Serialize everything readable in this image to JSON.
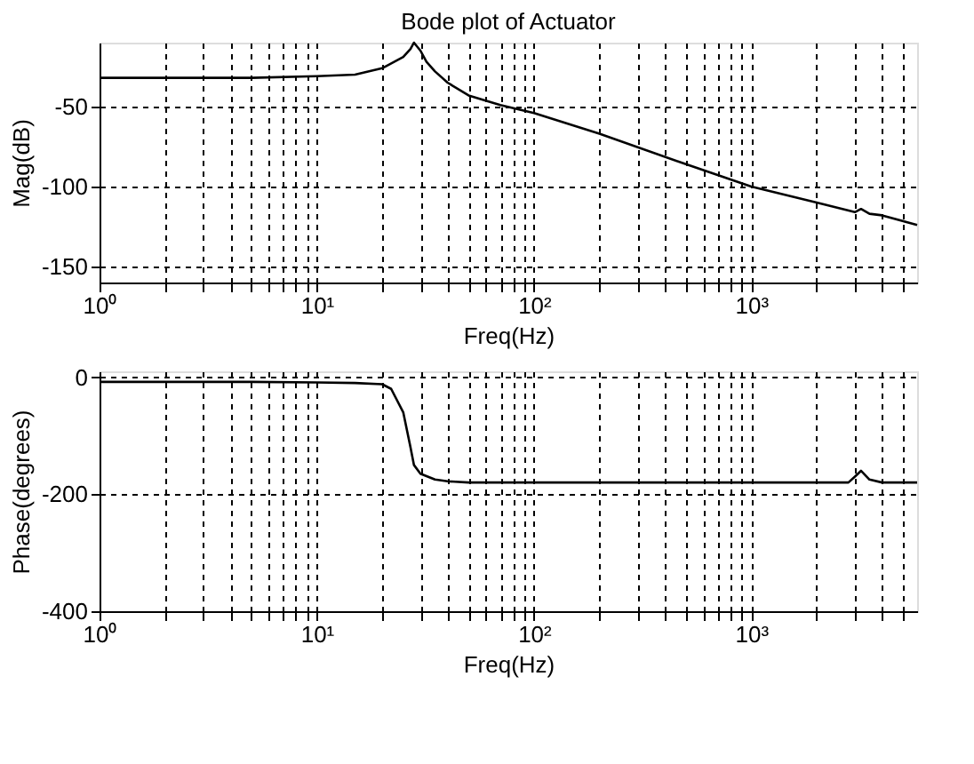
{
  "chart_data": [
    {
      "type": "line",
      "title": "Bode plot of Actuator",
      "xlabel": "Freq(Hz)",
      "ylabel": "Mag(dB)",
      "log": "x",
      "grid": true,
      "marker": "none",
      "line_style": "solid",
      "x": [
        1,
        2,
        5,
        10,
        15,
        20,
        25,
        27,
        28,
        30,
        32,
        35,
        40,
        50,
        70,
        100,
        200,
        500,
        1000,
        2000,
        3000,
        3200,
        3500,
        4000,
        5800
      ],
      "series": [
        {
          "color": "#000000",
          "values": [
            -32,
            -32,
            -32,
            -31,
            -30,
            -26,
            -19,
            -14,
            -10,
            -15,
            -22,
            -28,
            -35,
            -43,
            -49,
            -54,
            -67,
            -86,
            -100,
            -110,
            -116,
            -114,
            -117,
            -118,
            -124
          ]
        }
      ],
      "xlim": [
        1,
        5800
      ],
      "ylim": [
        -160,
        -10
      ],
      "yticks": [
        -150,
        -100,
        -50
      ],
      "xticks": [
        {
          "value": 1,
          "label": "10⁰"
        },
        {
          "value": 2,
          "label": null
        },
        {
          "value": 3,
          "label": null
        },
        {
          "value": 4,
          "label": null
        },
        {
          "value": 5,
          "label": null
        },
        {
          "value": 6,
          "label": null
        },
        {
          "value": 7,
          "label": null
        },
        {
          "value": 8,
          "label": null
        },
        {
          "value": 9,
          "label": null
        },
        {
          "value": 10,
          "label": "10¹"
        },
        {
          "value": 20,
          "label": null
        },
        {
          "value": 30,
          "label": null
        },
        {
          "value": 40,
          "label": null
        },
        {
          "value": 50,
          "label": null
        },
        {
          "value": 60,
          "label": null
        },
        {
          "value": 70,
          "label": null
        },
        {
          "value": 80,
          "label": null
        },
        {
          "value": 90,
          "label": null
        },
        {
          "value": 100,
          "label": "10²"
        },
        {
          "value": 200,
          "label": null
        },
        {
          "value": 300,
          "label": null
        },
        {
          "value": 400,
          "label": null
        },
        {
          "value": 500,
          "label": null
        },
        {
          "value": 600,
          "label": null
        },
        {
          "value": 700,
          "label": null
        },
        {
          "value": 800,
          "label": null
        },
        {
          "value": 900,
          "label": null
        },
        {
          "value": 1000,
          "label": "10³"
        },
        {
          "value": 2000,
          "label": null
        },
        {
          "value": 3000,
          "label": null
        },
        {
          "value": 4000,
          "label": null
        },
        {
          "value": 5000,
          "label": null
        }
      ]
    },
    {
      "type": "line",
      "xlabel": "Freq(Hz)",
      "ylabel": "Phase(degrees)",
      "log": "x",
      "grid": true,
      "marker": "none",
      "line_style": "solid",
      "x": [
        1,
        5,
        10,
        15,
        20,
        22,
        25,
        27,
        28,
        30,
        35,
        40,
        50,
        100,
        1000,
        2800,
        3000,
        3200,
        3500,
        4000,
        5800
      ],
      "series": [
        {
          "color": "#000000",
          "values": [
            -8,
            -8,
            -9,
            -10,
            -12,
            -20,
            -60,
            -120,
            -150,
            -165,
            -175,
            -178,
            -180,
            -180,
            -180,
            -180,
            -170,
            -160,
            -175,
            -180,
            -180
          ]
        }
      ],
      "xlim": [
        1,
        5800
      ],
      "ylim": [
        -400,
        10
      ],
      "yticks": [
        -400,
        -200,
        0
      ],
      "xticks": [
        {
          "value": 1,
          "label": "10⁰"
        },
        {
          "value": 2,
          "label": null
        },
        {
          "value": 3,
          "label": null
        },
        {
          "value": 4,
          "label": null
        },
        {
          "value": 5,
          "label": null
        },
        {
          "value": 6,
          "label": null
        },
        {
          "value": 7,
          "label": null
        },
        {
          "value": 8,
          "label": null
        },
        {
          "value": 9,
          "label": null
        },
        {
          "value": 10,
          "label": "10¹"
        },
        {
          "value": 20,
          "label": null
        },
        {
          "value": 30,
          "label": null
        },
        {
          "value": 40,
          "label": null
        },
        {
          "value": 50,
          "label": null
        },
        {
          "value": 60,
          "label": null
        },
        {
          "value": 70,
          "label": null
        },
        {
          "value": 80,
          "label": null
        },
        {
          "value": 90,
          "label": null
        },
        {
          "value": 100,
          "label": "10²"
        },
        {
          "value": 200,
          "label": null
        },
        {
          "value": 300,
          "label": null
        },
        {
          "value": 400,
          "label": null
        },
        {
          "value": 500,
          "label": null
        },
        {
          "value": 600,
          "label": null
        },
        {
          "value": 700,
          "label": null
        },
        {
          "value": 800,
          "label": null
        },
        {
          "value": 900,
          "label": null
        },
        {
          "value": 1000,
          "label": "10³"
        },
        {
          "value": 2000,
          "label": null
        },
        {
          "value": 3000,
          "label": null
        },
        {
          "value": 4000,
          "label": null
        },
        {
          "value": 5000,
          "label": null
        }
      ]
    }
  ]
}
